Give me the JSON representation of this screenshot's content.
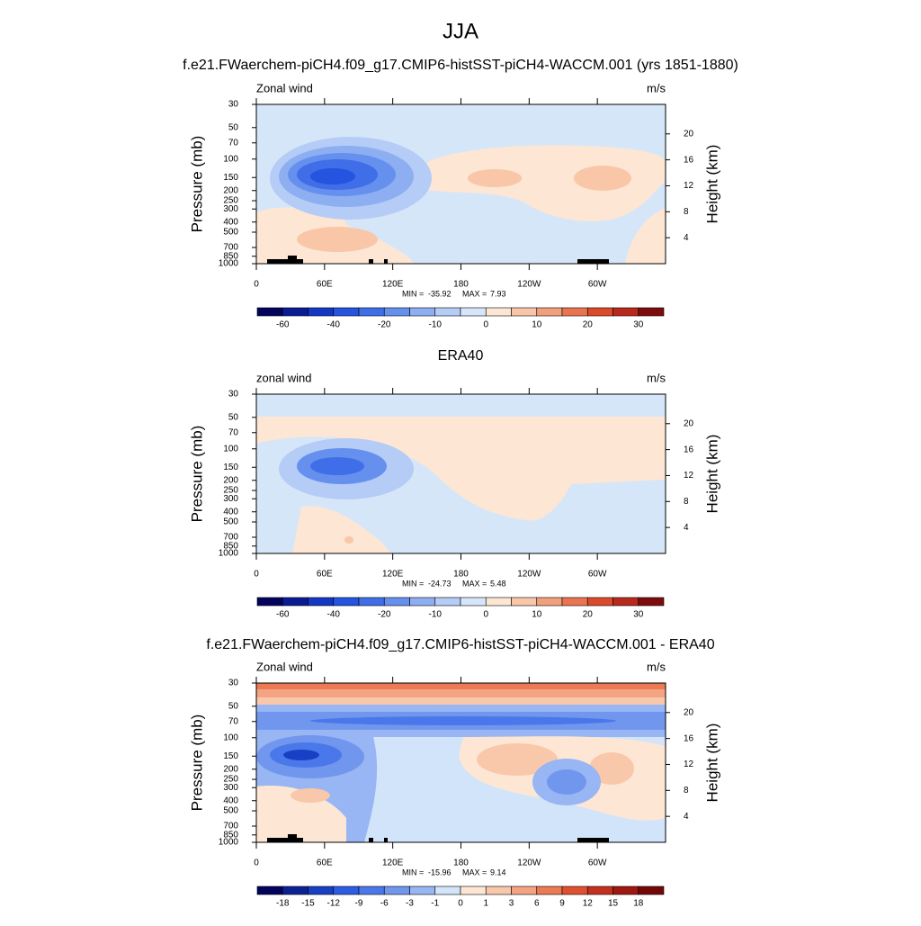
{
  "title": "JJA",
  "chart_data": [
    {
      "type": "contour",
      "title": "f.e21.FWaerchem-piCH4.f09_g17.CMIP6-histSST-piCH4-WACCM.001 (yrs 1851-1880)",
      "left_label": "Zonal wind",
      "right_label": "m/s",
      "ylabel": "Pressure (mb)",
      "y2label": "Height (km)",
      "xlim": [
        0,
        360
      ],
      "xticks": [
        0,
        {
          "value": 60,
          "label": "60E"
        },
        {
          "value": 120,
          "label": "120E"
        },
        180,
        {
          "value": 240,
          "label": "120W"
        },
        {
          "value": 300,
          "label": "60W"
        }
      ],
      "ylim": [
        1000,
        30
      ],
      "log_y": true,
      "yticks": [
        30,
        50,
        70,
        100,
        150,
        200,
        250,
        300,
        400,
        500,
        700,
        850,
        1000
      ],
      "y2ticks": [
        4,
        8,
        12,
        16,
        20
      ],
      "min_label": "MIN =",
      "min": -35.92,
      "max_label": "MAX =",
      "max": 7.93,
      "cbar_ticks": [
        -60,
        -40,
        -20,
        -10,
        0,
        10,
        20,
        30
      ],
      "cbar_colors": [
        "#03035e",
        "#0a1c94",
        "#1238c4",
        "#2454e0",
        "#3f6ee8",
        "#6690ee",
        "#8eaef2",
        "#b4ccf6",
        "#d6e6f9",
        "#fde6d4",
        "#f9c6a8",
        "#f2a07c",
        "#ea7450",
        "#dc4a2c",
        "#b82a1c",
        "#7e0c0c"
      ]
    },
    {
      "type": "contour",
      "title": "ERA40",
      "left_label": "zonal wind",
      "right_label": "m/s",
      "ylabel": "Pressure (mb)",
      "y2label": "Height (km)",
      "xlim": [
        0,
        360
      ],
      "xticks": [
        0,
        {
          "value": 60,
          "label": "60E"
        },
        {
          "value": 120,
          "label": "120E"
        },
        180,
        {
          "value": 240,
          "label": "120W"
        },
        {
          "value": 300,
          "label": "60W"
        }
      ],
      "ylim": [
        1000,
        30
      ],
      "log_y": true,
      "yticks": [
        30,
        50,
        70,
        100,
        150,
        200,
        250,
        300,
        400,
        500,
        700,
        850,
        1000
      ],
      "y2ticks": [
        4,
        8,
        12,
        16,
        20
      ],
      "min_label": "MIN =",
      "min": -24.73,
      "max_label": "MAX =",
      "max": 5.48,
      "cbar_ticks": [
        -60,
        -40,
        -20,
        -10,
        0,
        10,
        20,
        30
      ],
      "cbar_colors": [
        "#03035e",
        "#0a1c94",
        "#1238c4",
        "#2454e0",
        "#3f6ee8",
        "#6690ee",
        "#8eaef2",
        "#b4ccf6",
        "#d6e6f9",
        "#fde6d4",
        "#f9c6a8",
        "#f2a07c",
        "#ea7450",
        "#dc4a2c",
        "#b82a1c",
        "#7e0c0c"
      ]
    },
    {
      "type": "contour",
      "title": "f.e21.FWaerchem-piCH4.f09_g17.CMIP6-histSST-piCH4-WACCM.001 - ERA40",
      "left_label": "Zonal wind",
      "right_label": "m/s",
      "ylabel": "Pressure (mb)",
      "y2label": "Height (km)",
      "xlim": [
        0,
        360
      ],
      "xticks": [
        0,
        {
          "value": 60,
          "label": "60E"
        },
        {
          "value": 120,
          "label": "120E"
        },
        180,
        {
          "value": 240,
          "label": "120W"
        },
        {
          "value": 300,
          "label": "60W"
        }
      ],
      "ylim": [
        1000,
        30
      ],
      "log_y": true,
      "yticks": [
        30,
        50,
        70,
        100,
        150,
        200,
        250,
        300,
        400,
        500,
        700,
        850,
        1000
      ],
      "y2ticks": [
        4,
        8,
        12,
        16,
        20
      ],
      "min_label": "MIN =",
      "min": -15.96,
      "max_label": "MAX =",
      "max": 9.14,
      "cbar_ticks": [
        -18,
        -15,
        -12,
        -9,
        -6,
        -3,
        -1,
        0,
        1,
        3,
        6,
        9,
        12,
        15,
        18
      ],
      "cbar_colors": [
        "#03035e",
        "#0c2294",
        "#1840c4",
        "#2c5ce2",
        "#4a78ea",
        "#7096ee",
        "#98b6f4",
        "#d2e4f9",
        "#fde6d4",
        "#f9c8aa",
        "#f4a482",
        "#ec7a54",
        "#de5030",
        "#c4301e",
        "#a01812",
        "#740808"
      ]
    }
  ]
}
